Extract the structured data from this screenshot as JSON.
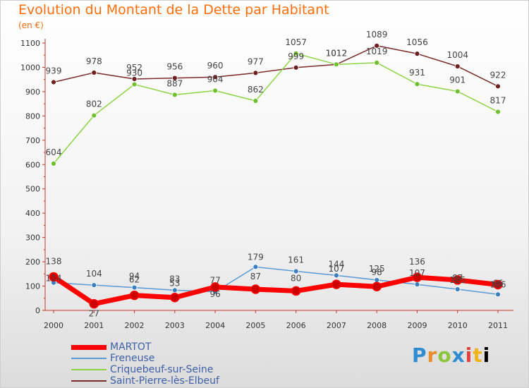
{
  "chart_data": {
    "type": "line",
    "title": "Evolution du Montant de la Dette par Habitant",
    "subtitle": "(en €)",
    "ylim": [
      0,
      1100
    ],
    "y_ticks": [
      "0",
      "100",
      "200",
      "300",
      "400",
      "500",
      "600",
      "700",
      "800",
      "900",
      "1000",
      "1100"
    ],
    "x": [
      "2000",
      "2001",
      "2002",
      "2003",
      "2004",
      "2005",
      "2006",
      "2007",
      "2008",
      "2009",
      "2010",
      "2011"
    ],
    "grid": false,
    "legend_position": "bottom-left",
    "series": [
      {
        "name": "MARTOT",
        "color": "#ff0000",
        "values": [
          138,
          27,
          62,
          53,
          96,
          87,
          80,
          107,
          98,
          136,
          125,
          106
        ],
        "labels": [
          "138",
          "27",
          "62",
          "53",
          "96",
          "87",
          "80",
          "107",
          "98",
          "136",
          "125",
          "106"
        ]
      },
      {
        "name": "Freneuse",
        "color": "#5b9bd5",
        "values": [
          114,
          104,
          94,
          83,
          77,
          179,
          161,
          144,
          125,
          107,
          87,
          66
        ],
        "labels": [
          "114",
          "104",
          "94",
          "83",
          "77",
          "179",
          "161",
          "144",
          "125",
          "107",
          "87",
          "66"
        ]
      },
      {
        "name": "Criquebeuf-sur-Seine",
        "color": "#8cd446",
        "values": [
          604,
          802,
          930,
          887,
          904,
          862,
          1057,
          1012,
          1019,
          931,
          901,
          817
        ],
        "labels": [
          "604",
          "802",
          "930",
          "887",
          "904",
          "862",
          "1057",
          "1012",
          "1019",
          "931",
          "901",
          "817"
        ]
      },
      {
        "name": "Saint-Pierre-lès-Elbeuf",
        "color": "#7a2a2a",
        "values": [
          939,
          978,
          952,
          956,
          960,
          977,
          999,
          1012,
          1089,
          1056,
          1004,
          922
        ],
        "labels": [
          "939",
          "978",
          "952",
          "956",
          "960",
          "977",
          "999",
          "1012",
          "1089",
          "1056",
          "1004",
          "922"
        ]
      }
    ]
  },
  "brand": {
    "letters": [
      "P",
      "r",
      "o",
      "x",
      "i",
      "t",
      "i"
    ]
  }
}
